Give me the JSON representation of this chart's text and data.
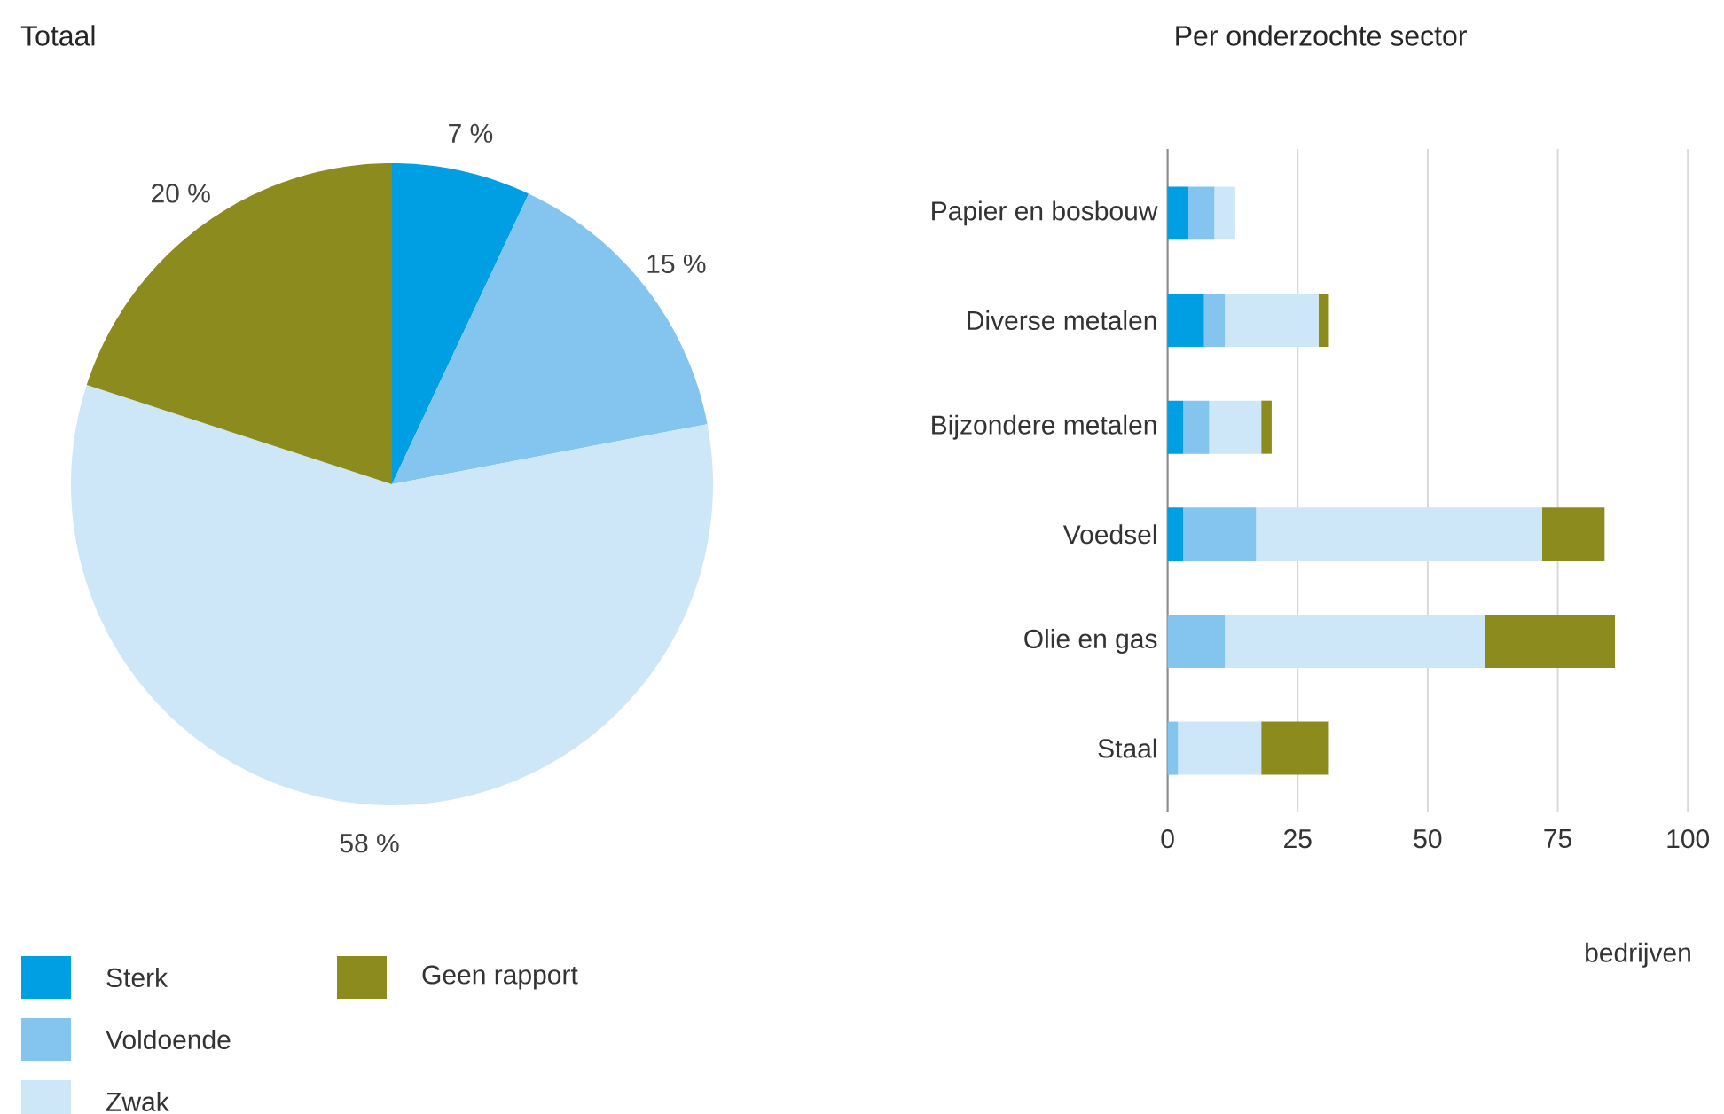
{
  "chart_data": [
    {
      "type": "pie",
      "title": "Totaal",
      "categories": [
        "Sterk",
        "Voldoende",
        "Zwak",
        "Geen rapport"
      ],
      "values": [
        7,
        15,
        58,
        20
      ],
      "colors": [
        "#009fe3",
        "#84c5f0",
        "#cde7f9",
        "#8c8c1e"
      ],
      "value_labels": [
        "7 %",
        "15 %",
        "58 %",
        "20 %"
      ],
      "legend": "bottom"
    },
    {
      "type": "bar",
      "title": "Per onderzochte sector",
      "orientation": "horizontal",
      "stacked": true,
      "categories": [
        "Papier en bosbouw",
        "Diverse metalen",
        "Bijzondere metalen",
        "Voedsel",
        "Olie en gas",
        "Staal"
      ],
      "xlabel": "bedrijven",
      "xlim": [
        0,
        100
      ],
      "xticks": [
        0,
        25,
        50,
        75,
        100
      ],
      "grid": "x",
      "series": [
        {
          "color": "#009fe3",
          "values": [
            4,
            7,
            3,
            3,
            0,
            0
          ]
        },
        {
          "color": "#84c5f0",
          "values": [
            5,
            4,
            5,
            14,
            11,
            2
          ]
        },
        {
          "color": "#cde7f9",
          "values": [
            4,
            18,
            10,
            55,
            50,
            16
          ]
        },
        {
          "color": "#8c8c1e",
          "values": [
            0,
            2,
            2,
            12,
            25,
            13
          ]
        }
      ]
    }
  ]
}
